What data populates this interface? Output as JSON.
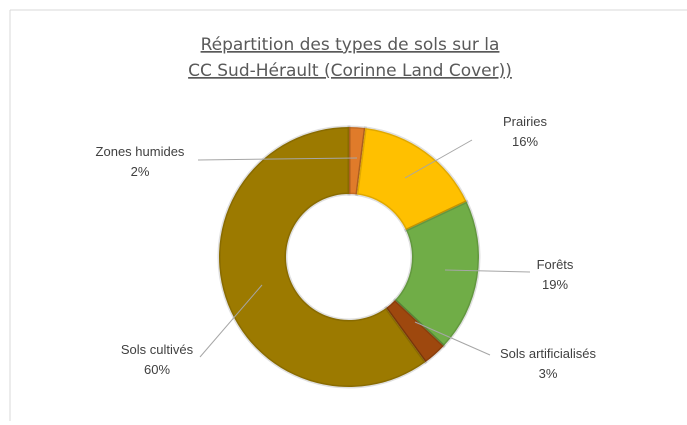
{
  "chart_data": {
    "type": "donut",
    "title": [
      "Répartition des types de sols sur la",
      "CC Sud-Hérault (Corinne Land Cover))"
    ],
    "categories": [
      "Zones humides",
      "Prairies",
      "Forêts",
      "Sols artificialisés",
      "Sols cultivés"
    ],
    "values": [
      2,
      16,
      19,
      3,
      60
    ],
    "value_labels": [
      "2%",
      "16%",
      "19%",
      "3%",
      "60%"
    ],
    "colors": [
      "#e07b2a",
      "#ffc000",
      "#70ad47",
      "#9e480e",
      "#9c7a00"
    ]
  }
}
